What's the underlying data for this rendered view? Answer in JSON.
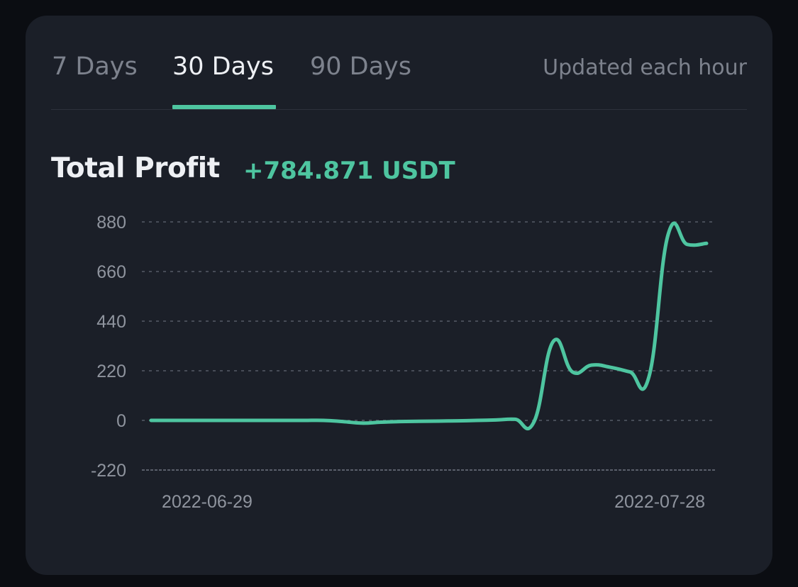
{
  "tabs": [
    {
      "label": "7 Days",
      "active": false
    },
    {
      "label": "30 Days",
      "active": true
    },
    {
      "label": "90 Days",
      "active": false
    }
  ],
  "update_note": "Updated each hour",
  "profit": {
    "label": "Total Profit",
    "value": "+784.871 USDT"
  },
  "colors": {
    "background": "#1b1f28",
    "accent": "#4ec5a0",
    "gridline": "#474c57",
    "text_primary": "#eef0f4",
    "text_muted": "#7d828d"
  },
  "chart_data": {
    "type": "line",
    "title": "",
    "xlabel": "",
    "ylabel": "",
    "ylim": [
      -220,
      880
    ],
    "yticks": [
      880,
      660,
      440,
      220,
      0,
      -220
    ],
    "xtick_labels": [
      "2022-06-29",
      "2022-07-28"
    ],
    "xlim": [
      "2022-06-29",
      "2022-07-28"
    ],
    "grid": true,
    "series": [
      {
        "color": "#4ec5a0",
        "x": [
          "2022-06-29",
          "2022-06-30",
          "2022-07-01",
          "2022-07-02",
          "2022-07-03",
          "2022-07-04",
          "2022-07-05",
          "2022-07-06",
          "2022-07-07",
          "2022-07-08",
          "2022-07-09",
          "2022-07-10",
          "2022-07-11",
          "2022-07-12",
          "2022-07-13",
          "2022-07-14",
          "2022-07-15",
          "2022-07-16",
          "2022-07-17",
          "2022-07-18",
          "2022-07-19",
          "2022-07-20",
          "2022-07-21",
          "2022-07-22",
          "2022-07-23",
          "2022-07-24",
          "2022-07-25",
          "2022-07-26",
          "2022-07-27",
          "2022-07-28"
        ],
        "values": [
          0,
          0,
          0,
          0,
          0,
          0,
          0,
          0,
          0,
          0,
          -5,
          -12,
          -8,
          -5,
          -4,
          -3,
          -2,
          0,
          2,
          5,
          -5,
          350,
          215,
          245,
          235,
          215,
          195,
          825,
          780,
          784.871
        ]
      }
    ]
  }
}
